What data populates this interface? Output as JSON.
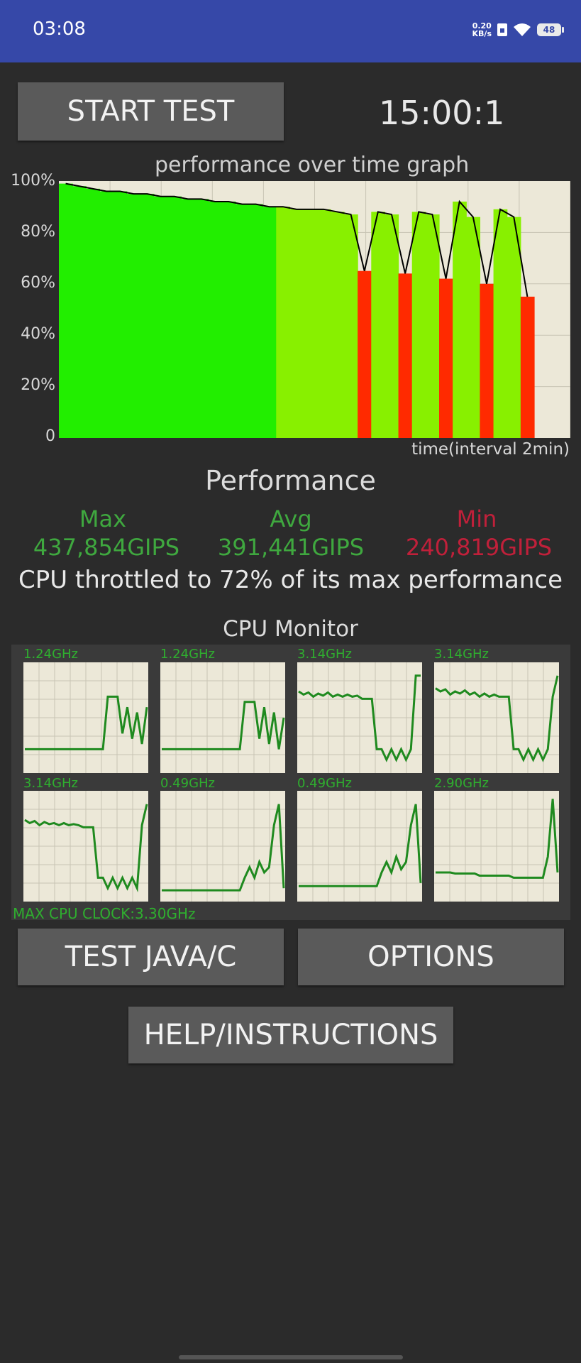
{
  "status_bar": {
    "time": "03:08",
    "net_speed": "0.20",
    "net_unit": "KB/s",
    "battery": "48"
  },
  "controls": {
    "start_test": "START TEST",
    "timer": "15:00:1",
    "test_java_c": "TEST JAVA/C",
    "options": "OPTIONS",
    "help": "HELP/INSTRUCTIONS"
  },
  "chart_data": {
    "type": "area",
    "title": "performance over time graph",
    "xlabel": "time(interval 2min)",
    "ylabel": "",
    "y_ticks": [
      "100%",
      "80%",
      "60%",
      "40%",
      "20%",
      "0"
    ],
    "ylim": [
      0,
      100
    ],
    "grid": true,
    "series": [
      {
        "values": [
          99,
          98,
          97,
          96,
          96,
          95,
          95,
          94,
          94,
          93,
          93,
          92,
          92,
          91,
          91,
          90,
          90,
          89,
          89,
          89,
          88,
          87,
          65,
          88,
          87,
          64,
          88,
          87,
          62,
          92,
          86,
          60,
          89,
          86,
          55
        ]
      }
    ],
    "colors": {
      "high": "#22ee00",
      "mid": "#88f000",
      "low": "#ff2a00",
      "line": "#000000"
    }
  },
  "performance": {
    "title": "Performance",
    "max_label": "Max",
    "max_value": "437,854GIPS",
    "avg_label": "Avg",
    "avg_value": "391,441GIPS",
    "min_label": "Min",
    "min_value": "240,819GIPS",
    "throttle_text": "CPU throttled to 72% of its max performance",
    "colors": {
      "max": "#3fa83f",
      "avg": "#3fa83f",
      "min": "#c0203a"
    }
  },
  "cpu_monitor": {
    "title": "CPU Monitor",
    "max_clock": "MAX CPU CLOCK:3.30GHz",
    "cores": [
      {
        "freq": "1.24GHz",
        "values": [
          20,
          20,
          20,
          20,
          20,
          20,
          20,
          20,
          20,
          20,
          20,
          20,
          20,
          20,
          20,
          20,
          20,
          70,
          70,
          70,
          35,
          60,
          30,
          55,
          25,
          60
        ]
      },
      {
        "freq": "1.24GHz",
        "values": [
          20,
          20,
          20,
          20,
          20,
          20,
          20,
          20,
          20,
          20,
          20,
          20,
          20,
          20,
          20,
          20,
          20,
          65,
          65,
          65,
          30,
          60,
          25,
          55,
          20,
          50
        ]
      },
      {
        "freq": "3.14GHz",
        "values": [
          75,
          72,
          74,
          70,
          73,
          71,
          74,
          70,
          72,
          70,
          72,
          70,
          71,
          68,
          68,
          68,
          20,
          20,
          10,
          20,
          10,
          20,
          10,
          20,
          90,
          90
        ]
      },
      {
        "freq": "3.14GHz",
        "values": [
          78,
          75,
          77,
          72,
          75,
          73,
          76,
          72,
          74,
          70,
          73,
          70,
          72,
          70,
          70,
          70,
          20,
          20,
          10,
          20,
          10,
          20,
          10,
          20,
          70,
          90
        ]
      },
      {
        "freq": "3.14GHz",
        "values": [
          75,
          72,
          74,
          70,
          73,
          71,
          72,
          70,
          72,
          70,
          71,
          70,
          68,
          68,
          68,
          20,
          20,
          10,
          20,
          10,
          20,
          10,
          20,
          10,
          70,
          90
        ]
      },
      {
        "freq": "0.49GHz",
        "values": [
          8,
          8,
          8,
          8,
          8,
          8,
          8,
          8,
          8,
          8,
          8,
          8,
          8,
          8,
          8,
          8,
          8,
          20,
          30,
          20,
          35,
          25,
          30,
          70,
          90,
          10
        ]
      },
      {
        "freq": "0.49GHz",
        "values": [
          12,
          12,
          12,
          12,
          12,
          12,
          12,
          12,
          12,
          12,
          12,
          12,
          12,
          12,
          12,
          12,
          12,
          25,
          35,
          25,
          40,
          28,
          35,
          70,
          90,
          15
        ]
      },
      {
        "freq": "2.90GHz",
        "values": [
          25,
          25,
          25,
          25,
          24,
          24,
          24,
          24,
          24,
          22,
          22,
          22,
          22,
          22,
          22,
          22,
          20,
          20,
          20,
          20,
          20,
          20,
          20,
          40,
          95,
          25
        ]
      }
    ]
  }
}
